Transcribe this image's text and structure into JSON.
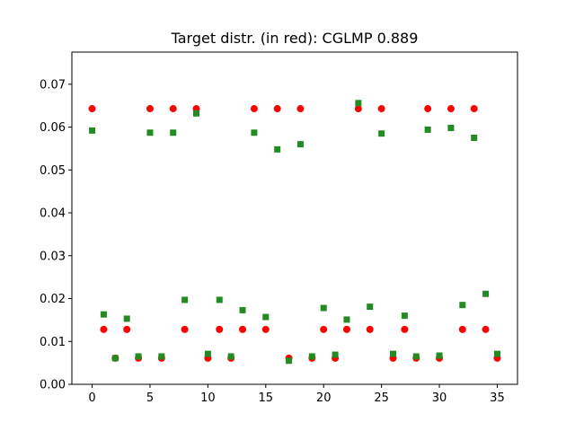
{
  "chart_data": {
    "type": "scatter",
    "title": "Target distr. (in red): CGLMP 0.889",
    "xlabel": "",
    "ylabel": "",
    "xlim": [
      -1.75,
      36.75
    ],
    "ylim": [
      0.0,
      0.0775
    ],
    "x_ticks": [
      0,
      5,
      10,
      15,
      20,
      25,
      30,
      35
    ],
    "y_ticks": [
      0.0,
      0.01,
      0.02,
      0.03,
      0.04,
      0.05,
      0.06,
      0.07
    ],
    "x_tick_labels": [
      "0",
      "5",
      "10",
      "15",
      "20",
      "25",
      "30",
      "35"
    ],
    "y_tick_labels": [
      "0.00",
      "0.01",
      "0.02",
      "0.03",
      "0.04",
      "0.05",
      "0.06",
      "0.07"
    ],
    "grid": false,
    "series": [
      {
        "marker": "circle",
        "color": "#ff0000",
        "x": [
          0,
          1,
          2,
          3,
          4,
          5,
          6,
          7,
          8,
          9,
          10,
          11,
          12,
          13,
          14,
          15,
          16,
          17,
          18,
          19,
          20,
          21,
          22,
          23,
          24,
          25,
          26,
          27,
          28,
          29,
          30,
          31,
          32,
          33,
          34,
          35
        ],
        "y": [
          0.0643,
          0.0128,
          0.0061,
          0.0128,
          0.0061,
          0.0643,
          0.0061,
          0.0643,
          0.0128,
          0.0643,
          0.0061,
          0.0128,
          0.0061,
          0.0128,
          0.0643,
          0.0128,
          0.0643,
          0.0061,
          0.0643,
          0.0061,
          0.0128,
          0.0061,
          0.0128,
          0.0643,
          0.0128,
          0.0643,
          0.0061,
          0.0128,
          0.0061,
          0.0643,
          0.0061,
          0.0643,
          0.0128,
          0.0643,
          0.0128,
          0.0061
        ]
      },
      {
        "marker": "square",
        "color": "#228b22",
        "x": [
          0,
          1,
          2,
          3,
          4,
          5,
          6,
          7,
          8,
          9,
          10,
          11,
          12,
          13,
          14,
          15,
          16,
          17,
          18,
          19,
          20,
          21,
          22,
          23,
          24,
          25,
          26,
          27,
          28,
          29,
          30,
          31,
          32,
          33,
          34,
          35
        ],
        "y": [
          0.0592,
          0.0163,
          0.0061,
          0.0153,
          0.0065,
          0.0587,
          0.0065,
          0.0587,
          0.0197,
          0.0632,
          0.0071,
          0.0197,
          0.0065,
          0.0173,
          0.0587,
          0.0157,
          0.0548,
          0.0055,
          0.056,
          0.0065,
          0.0178,
          0.0069,
          0.0151,
          0.0656,
          0.0181,
          0.0585,
          0.0071,
          0.016,
          0.0065,
          0.0594,
          0.0067,
          0.0598,
          0.0185,
          0.0575,
          0.0211,
          0.0071
        ]
      }
    ]
  }
}
